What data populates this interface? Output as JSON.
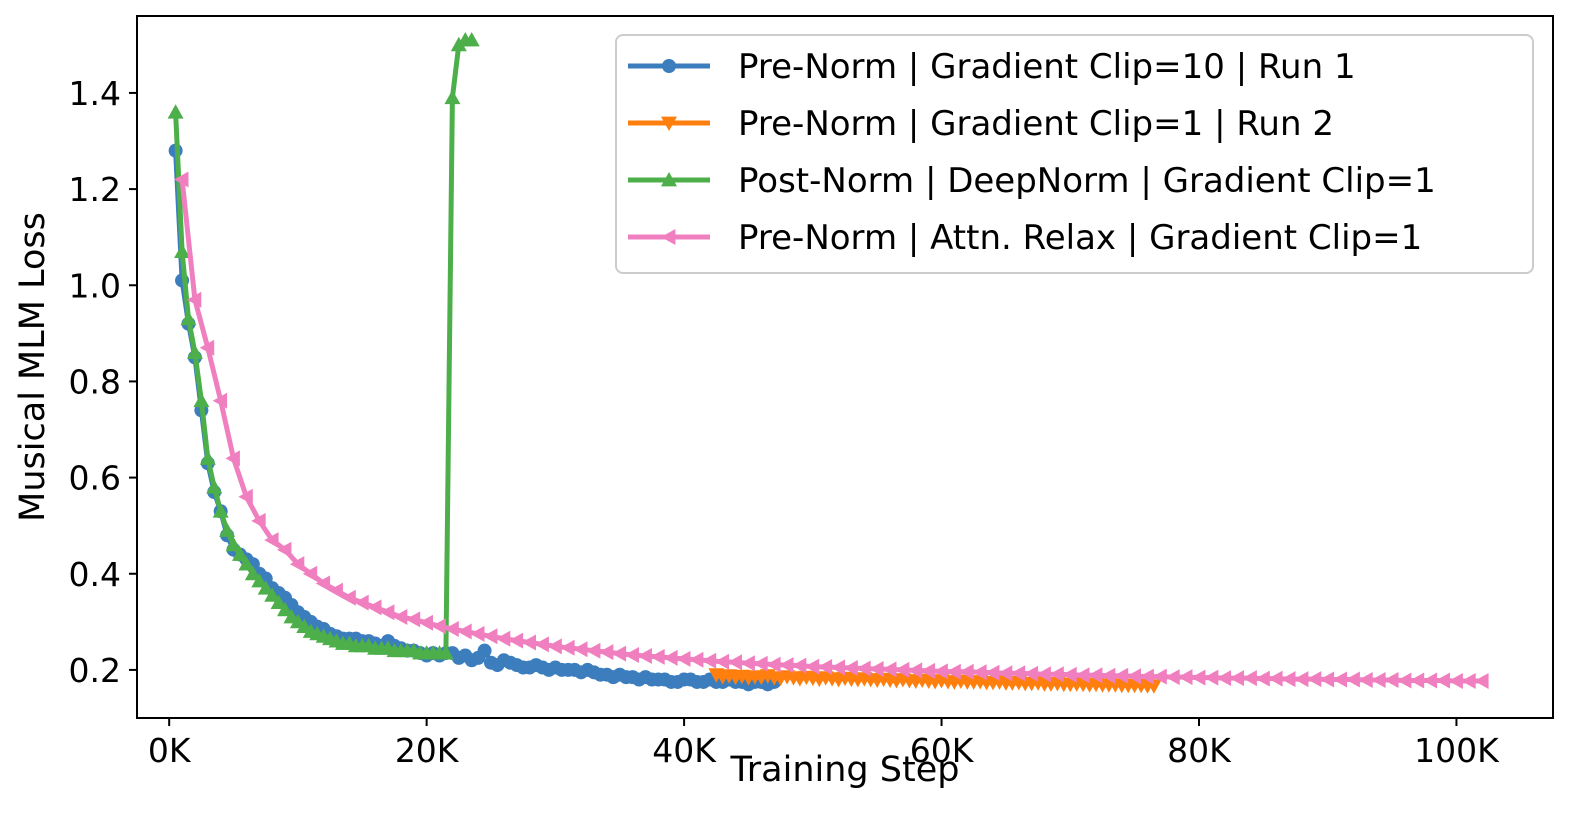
{
  "chart_data": {
    "type": "line",
    "title": "",
    "xlabel": "Training Step",
    "ylabel": "Musical MLM Loss",
    "xlim": [
      -2500,
      107500
    ],
    "ylim": [
      0.1,
      1.56
    ],
    "xticks": [
      0,
      20000,
      40000,
      60000,
      80000,
      100000
    ],
    "xtick_labels": [
      "0K",
      "20K",
      "40K",
      "60K",
      "80K",
      "100K"
    ],
    "yticks": [
      0.2,
      0.4,
      0.6,
      0.8,
      1.0,
      1.2,
      1.4
    ],
    "ytick_labels": [
      "0.2",
      "0.4",
      "0.6",
      "0.8",
      "1.0",
      "1.2",
      "1.4"
    ],
    "legend_position": "top-right",
    "series": [
      {
        "name": "Pre-Norm | Gradient Clip=10 | Run 1",
        "color": "#3b7dbd",
        "marker": "circle",
        "x": [
          500,
          1000,
          1500,
          2000,
          2500,
          3000,
          3500,
          4000,
          4500,
          5000,
          5500,
          6000,
          6500,
          7000,
          7500,
          8000,
          8500,
          9000,
          9500,
          10000,
          10500,
          11000,
          11500,
          12000,
          12500,
          13000,
          13500,
          14000,
          14500,
          15000,
          15500,
          16000,
          16500,
          17000,
          17500,
          18000,
          18500,
          19000,
          19500,
          20000,
          20500,
          21000,
          21500,
          22000,
          22500,
          23000,
          23500,
          24000,
          24500,
          25000,
          25500,
          26000,
          26500,
          27000,
          27500,
          28000,
          28500,
          29000,
          29500,
          30000,
          30500,
          31000,
          31500,
          32000,
          32500,
          33000,
          33500,
          34000,
          34500,
          35000,
          35500,
          36000,
          36500,
          37000,
          37500,
          38000,
          38500,
          39000,
          39500,
          40000,
          40500,
          41000,
          41500,
          42000,
          42500,
          43000,
          43500,
          44000,
          44500,
          45000,
          45500,
          46000,
          46500,
          47000
        ],
        "y": [
          1.28,
          1.01,
          0.92,
          0.85,
          0.74,
          0.63,
          0.57,
          0.53,
          0.48,
          0.45,
          0.44,
          0.43,
          0.42,
          0.4,
          0.39,
          0.37,
          0.36,
          0.35,
          0.335,
          0.32,
          0.31,
          0.3,
          0.29,
          0.285,
          0.275,
          0.27,
          0.265,
          0.265,
          0.265,
          0.26,
          0.26,
          0.255,
          0.25,
          0.26,
          0.25,
          0.245,
          0.24,
          0.24,
          0.235,
          0.23,
          0.235,
          0.23,
          0.235,
          0.235,
          0.225,
          0.23,
          0.22,
          0.225,
          0.24,
          0.215,
          0.21,
          0.22,
          0.215,
          0.21,
          0.205,
          0.205,
          0.21,
          0.205,
          0.2,
          0.205,
          0.2,
          0.2,
          0.2,
          0.195,
          0.2,
          0.195,
          0.19,
          0.19,
          0.185,
          0.19,
          0.185,
          0.185,
          0.18,
          0.185,
          0.18,
          0.18,
          0.18,
          0.175,
          0.175,
          0.18,
          0.18,
          0.175,
          0.175,
          0.18,
          0.175,
          0.175,
          0.18,
          0.175,
          0.175,
          0.17,
          0.175,
          0.175,
          0.17,
          0.175
        ]
      },
      {
        "name": "Pre-Norm | Gradient Clip=1 | Run 2",
        "color": "#ff7f0e",
        "marker": "triangle-down",
        "x": [
          42500,
          43000,
          43500,
          44000,
          44500,
          45000,
          45500,
          46000,
          46500,
          47000,
          47500,
          48000,
          48500,
          49000,
          49500,
          50000,
          50500,
          51000,
          51500,
          52000,
          52500,
          53000,
          53500,
          54000,
          54500,
          55000,
          55500,
          56000,
          56500,
          57000,
          57500,
          58000,
          58500,
          59000,
          59500,
          60000,
          60500,
          61000,
          61500,
          62000,
          62500,
          63000,
          63500,
          64000,
          64500,
          65000,
          65500,
          66000,
          66500,
          67000,
          67500,
          68000,
          68500,
          69000,
          69500,
          70000,
          70500,
          71000,
          71500,
          72000,
          72500,
          73000,
          73500,
          74000,
          74500,
          75000,
          75500,
          76000,
          76500
        ],
        "y": [
          0.19,
          0.186,
          0.188,
          0.185,
          0.187,
          0.184,
          0.186,
          0.185,
          0.188,
          0.184,
          0.183,
          0.186,
          0.184,
          0.182,
          0.185,
          0.183,
          0.181,
          0.184,
          0.182,
          0.18,
          0.183,
          0.181,
          0.18,
          0.182,
          0.18,
          0.179,
          0.181,
          0.179,
          0.178,
          0.18,
          0.178,
          0.177,
          0.179,
          0.177,
          0.176,
          0.178,
          0.176,
          0.175,
          0.177,
          0.175,
          0.175,
          0.176,
          0.174,
          0.174,
          0.175,
          0.173,
          0.173,
          0.174,
          0.172,
          0.172,
          0.173,
          0.171,
          0.171,
          0.172,
          0.17,
          0.17,
          0.171,
          0.17,
          0.169,
          0.17,
          0.169,
          0.169,
          0.169,
          0.168,
          0.168,
          0.168,
          0.168,
          0.167,
          0.167
        ]
      },
      {
        "name": "Post-Norm | DeepNorm | Gradient Clip=1",
        "color": "#4daf4a",
        "marker": "triangle-up",
        "x": [
          500,
          1000,
          1500,
          2000,
          2500,
          3000,
          3500,
          4000,
          4500,
          5000,
          5500,
          6000,
          6500,
          7000,
          7500,
          8000,
          8500,
          9000,
          9500,
          10000,
          10500,
          11000,
          11500,
          12000,
          12500,
          13000,
          13500,
          14000,
          14500,
          15000,
          15500,
          16000,
          16500,
          17000,
          17500,
          18000,
          18500,
          19000,
          19500,
          20000,
          20500,
          21000,
          21500,
          22000,
          22500,
          23000,
          23500
        ],
        "y": [
          1.36,
          1.07,
          0.93,
          0.86,
          0.76,
          0.64,
          0.58,
          0.53,
          0.49,
          0.46,
          0.44,
          0.42,
          0.4,
          0.385,
          0.37,
          0.355,
          0.34,
          0.325,
          0.31,
          0.3,
          0.29,
          0.28,
          0.275,
          0.27,
          0.265,
          0.26,
          0.255,
          0.255,
          0.25,
          0.25,
          0.25,
          0.245,
          0.245,
          0.245,
          0.24,
          0.24,
          0.24,
          0.24,
          0.235,
          0.235,
          0.235,
          0.235,
          0.235,
          1.39,
          1.5,
          1.51,
          1.51
        ]
      },
      {
        "name": "Pre-Norm | Attn. Relax | Gradient Clip=1",
        "color": "#f07fc0",
        "marker": "triangle-left",
        "x": [
          1000,
          2000,
          3000,
          4000,
          5000,
          6000,
          7000,
          8000,
          9000,
          10000,
          11000,
          12000,
          13000,
          14000,
          15000,
          16000,
          17000,
          18000,
          19000,
          20000,
          21000,
          22000,
          23000,
          24000,
          25000,
          26000,
          27000,
          28000,
          29000,
          30000,
          31000,
          32000,
          33000,
          34000,
          35000,
          36000,
          37000,
          38000,
          39000,
          40000,
          41000,
          42000,
          43000,
          44000,
          45000,
          46000,
          47000,
          48000,
          49000,
          50000,
          51000,
          52000,
          53000,
          54000,
          55000,
          56000,
          57000,
          58000,
          59000,
          60000,
          61000,
          62000,
          63000,
          64000,
          65000,
          66000,
          67000,
          68000,
          69000,
          70000,
          71000,
          72000,
          73000,
          74000,
          75000,
          76000,
          77000,
          78000,
          79000,
          80000,
          81000,
          82000,
          83000,
          84000,
          85000,
          86000,
          87000,
          88000,
          89000,
          90000,
          91000,
          92000,
          93000,
          94000,
          95000,
          96000,
          97000,
          98000,
          99000,
          100000,
          101000,
          102000
        ],
        "y": [
          1.22,
          0.97,
          0.87,
          0.76,
          0.64,
          0.56,
          0.51,
          0.47,
          0.45,
          0.42,
          0.4,
          0.38,
          0.365,
          0.35,
          0.34,
          0.33,
          0.32,
          0.31,
          0.305,
          0.298,
          0.291,
          0.285,
          0.28,
          0.275,
          0.27,
          0.265,
          0.261,
          0.257,
          0.253,
          0.249,
          0.246,
          0.243,
          0.24,
          0.237,
          0.234,
          0.231,
          0.229,
          0.227,
          0.225,
          0.223,
          0.221,
          0.219,
          0.217,
          0.216,
          0.214,
          0.213,
          0.211,
          0.21,
          0.209,
          0.207,
          0.206,
          0.205,
          0.204,
          0.203,
          0.202,
          0.201,
          0.2,
          0.199,
          0.198,
          0.197,
          0.196,
          0.196,
          0.195,
          0.194,
          0.193,
          0.193,
          0.192,
          0.191,
          0.191,
          0.19,
          0.189,
          0.189,
          0.188,
          0.188,
          0.187,
          0.186,
          0.186,
          0.185,
          0.185,
          0.184,
          0.184,
          0.183,
          0.183,
          0.183,
          0.182,
          0.182,
          0.181,
          0.181,
          0.181,
          0.18,
          0.18,
          0.18,
          0.179,
          0.179,
          0.179,
          0.178,
          0.178,
          0.178,
          0.178,
          0.177,
          0.177,
          0.177
        ]
      }
    ]
  }
}
